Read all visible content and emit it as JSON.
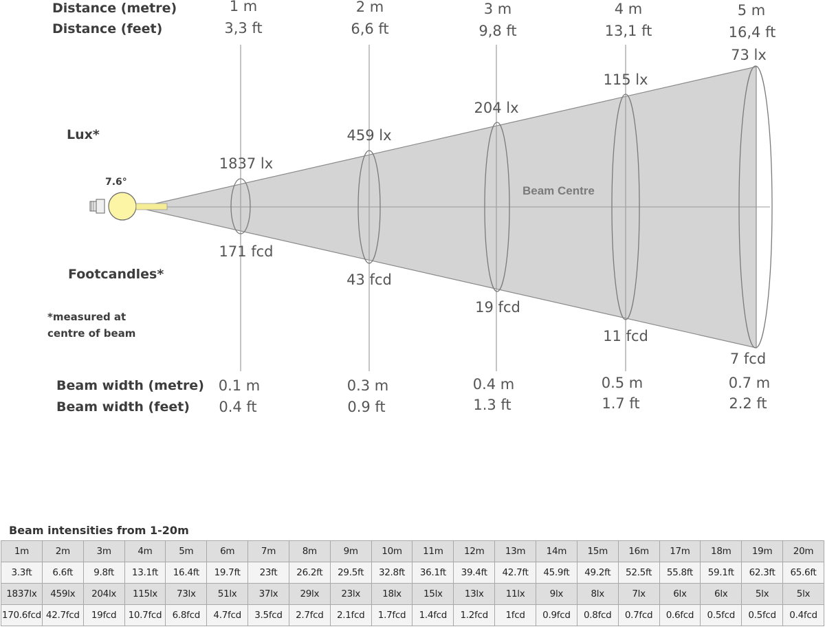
{
  "row_labels": {
    "distance_m": "Distance (metre)",
    "distance_ft": "Distance (feet)",
    "lux": "Lux*",
    "footcandles": "Footcandles*",
    "note_line1": "*measured at",
    "note_line2": "centre of beam",
    "beam_width_m": "Beam width (metre)",
    "beam_width_ft": "Beam width (feet)"
  },
  "beam_angle": "7.6°",
  "beam_centre_label": "Beam Centre",
  "stations": [
    {
      "dist_m": "1 m",
      "dist_ft": "3,3 ft",
      "lux": "1837 lx",
      "fcd": "171 fcd",
      "width_m": "0.1 m",
      "width_ft": "0.4 ft"
    },
    {
      "dist_m": "2 m",
      "dist_ft": "6,6 ft",
      "lux": "459 lx",
      "fcd": "43 fcd",
      "width_m": "0.3 m",
      "width_ft": "0.9 ft"
    },
    {
      "dist_m": "3 m",
      "dist_ft": "9,8 ft",
      "lux": "204 lx",
      "fcd": "19 fcd",
      "width_m": "0.4 m",
      "width_ft": "1.3 ft"
    },
    {
      "dist_m": "4 m",
      "dist_ft": "13,1 ft",
      "lux": "115 lx",
      "fcd": "11 fcd",
      "width_m": "0.5 m",
      "width_ft": "1.7 ft"
    },
    {
      "dist_m": "5 m",
      "dist_ft": "16,4 ft",
      "lux": "73 lx",
      "fcd": "7 fcd",
      "width_m": "0.7 m",
      "width_ft": "2.2 ft"
    }
  ],
  "table": {
    "title": "Beam intensities from 1-20m",
    "rows": [
      [
        "1m",
        "2m",
        "3m",
        "4m",
        "5m",
        "6m",
        "7m",
        "8m",
        "9m",
        "10m",
        "11m",
        "12m",
        "13m",
        "14m",
        "15m",
        "16m",
        "17m",
        "18m",
        "19m",
        "20m"
      ],
      [
        "3.3ft",
        "6.6ft",
        "9.8ft",
        "13.1ft",
        "16.4ft",
        "19.7ft",
        "23ft",
        "26.2ft",
        "29.5ft",
        "32.8ft",
        "36.1ft",
        "39.4ft",
        "42.7ft",
        "45.9ft",
        "49.2ft",
        "52.5ft",
        "55.8ft",
        "59.1ft",
        "62.3ft",
        "65.6ft"
      ],
      [
        "1837lx",
        "459lx",
        "204lx",
        "115lx",
        "73lx",
        "51lx",
        "37lx",
        "29lx",
        "23lx",
        "18lx",
        "15lx",
        "13lx",
        "11lx",
        "9lx",
        "8lx",
        "7lx",
        "6lx",
        "6lx",
        "5lx",
        "5lx"
      ],
      [
        "170.6fcd",
        "42.7fcd",
        "19fcd",
        "10.7fcd",
        "6.8fcd",
        "4.7fcd",
        "3.5fcd",
        "2.7fcd",
        "2.1fcd",
        "1.7fcd",
        "1.4fcd",
        "1.2fcd",
        "1fcd",
        "0.9fcd",
        "0.8fcd",
        "0.7fcd",
        "0.6fcd",
        "0.5fcd",
        "0.5fcd",
        "0.4fcd"
      ]
    ]
  },
  "colors": {
    "beam_fill": "#d4d4d4",
    "beam_stroke": "#777777",
    "lamp_fill": "#fdf5a6",
    "table_shade": "#dedede",
    "table_light": "#f4f4f4"
  }
}
